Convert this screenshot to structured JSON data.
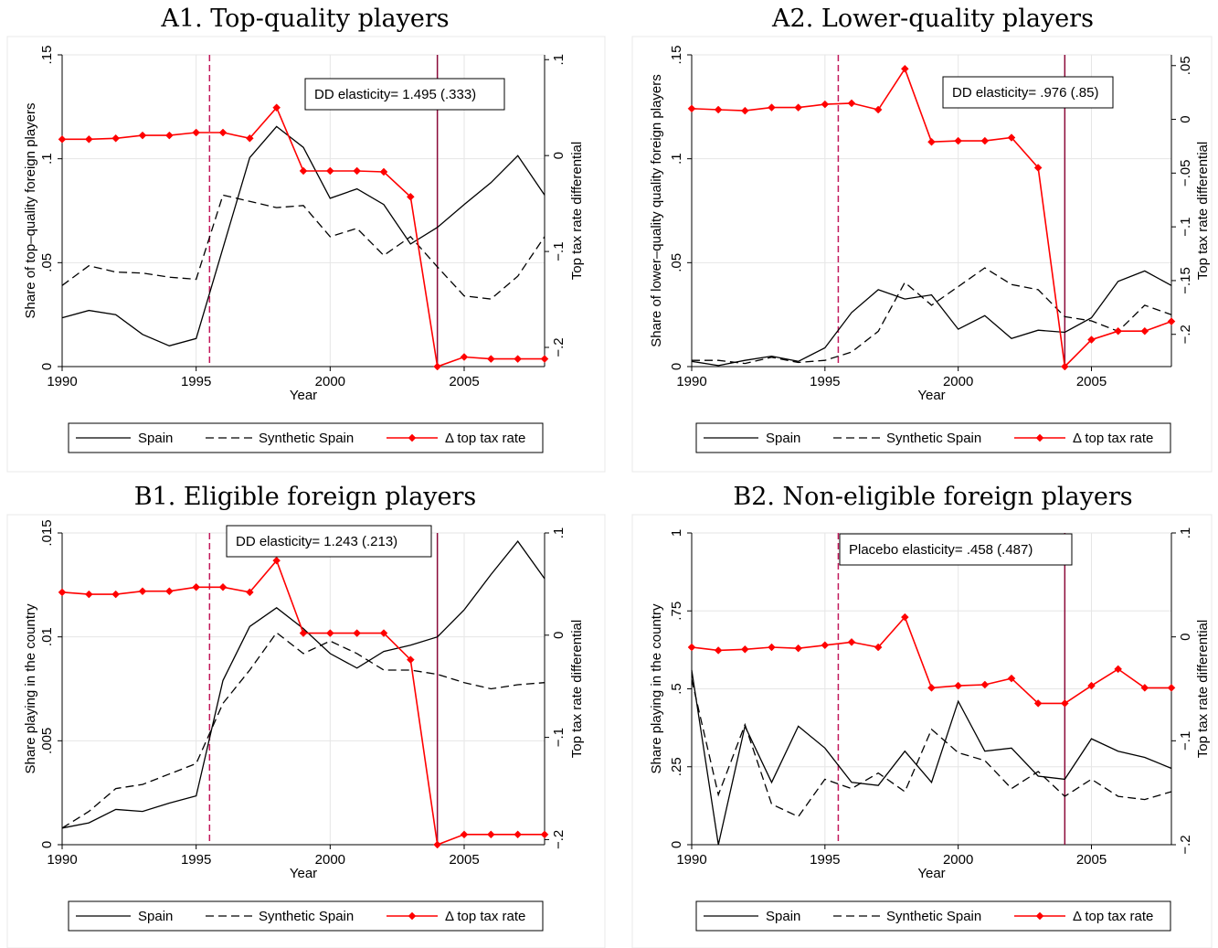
{
  "chart_data": [
    {
      "type": "line",
      "title": "A1. Top-quality players",
      "xlabel": "Year",
      "ylabel": "Share of top–quality foreign players",
      "y2label": "Top tax rate differential",
      "xlim": [
        1990,
        2008
      ],
      "ylim": [
        0,
        0.15
      ],
      "y2lim": [
        -0.22,
        0.105
      ],
      "x_ticks": [
        1990,
        1995,
        2000,
        2005
      ],
      "x_tick_labels": [
        "1990",
        "1995",
        "2000",
        "2005"
      ],
      "y_ticks": [
        0,
        0.05,
        0.1,
        0.15
      ],
      "y_tick_labels": [
        "0",
        ".05",
        ".1",
        ".15"
      ],
      "y2_ticks": [
        -0.2,
        -0.1,
        0,
        0.1
      ],
      "y2_tick_labels": [
        "−.2",
        "−.1",
        "0",
        ".1"
      ],
      "vlines": [
        1995.5,
        2004
      ],
      "annotation": "DD elasticity= 1.495 (.333)",
      "x": [
        1990,
        1991,
        1992,
        1993,
        1994,
        1995,
        1996,
        1997,
        1998,
        1999,
        2000,
        2001,
        2002,
        2003,
        2004,
        2005,
        2006,
        2007,
        2008
      ],
      "series": [
        {
          "name": "Spain",
          "axis": "left",
          "values": [
            0.0235,
            0.027,
            0.025,
            0.0155,
            0.01,
            0.0135,
            0.057,
            0.1005,
            0.1155,
            0.1055,
            0.081,
            0.0855,
            0.078,
            0.059,
            0.067,
            0.078,
            0.0885,
            0.1015,
            0.0825
          ]
        },
        {
          "name": "Synthetic Spain",
          "axis": "left",
          "values": [
            0.039,
            0.0485,
            0.0455,
            0.045,
            0.043,
            0.042,
            0.0825,
            0.0795,
            0.0765,
            0.0775,
            0.0625,
            0.0665,
            0.0535,
            0.0625,
            0.048,
            0.034,
            0.0325,
            0.0435,
            0.0625
          ]
        },
        {
          "name": "Δ top tax rate",
          "axis": "right",
          "values": [
            0.017,
            0.017,
            0.018,
            0.021,
            0.021,
            0.024,
            0.024,
            0.018,
            0.05,
            -0.016,
            -0.016,
            -0.016,
            -0.017,
            -0.043,
            -0.22,
            -0.21,
            -0.212,
            -0.212,
            -0.212
          ]
        }
      ],
      "legend": [
        "Spain",
        "Synthetic Spain",
        "Δ top tax rate"
      ],
      "legend_position": "bottom"
    },
    {
      "type": "line",
      "title": "A2. Lower-quality players",
      "xlabel": "Year",
      "ylabel": "Share of lower–quality quality foreign players",
      "y2label": "Top tax rate differential",
      "xlim": [
        1990,
        2008
      ],
      "ylim": [
        0,
        0.15
      ],
      "y2lim": [
        -0.23,
        0.06
      ],
      "x_ticks": [
        1990,
        1995,
        2000,
        2005
      ],
      "x_tick_labels": [
        "1990",
        "1995",
        "2000",
        "2005"
      ],
      "y_ticks": [
        0,
        0.05,
        0.1,
        0.15
      ],
      "y_tick_labels": [
        "0",
        ".05",
        ".1",
        ".15"
      ],
      "y2_ticks": [
        -0.2,
        -0.15,
        -0.1,
        -0.05,
        0,
        0.05
      ],
      "y2_tick_labels": [
        "−.2",
        "−.15",
        "−.1",
        "−.05",
        "0",
        ".05"
      ],
      "vlines": [
        1995.5,
        2004
      ],
      "annotation": "DD elasticity= .976 (.85)",
      "x": [
        1990,
        1991,
        1992,
        1993,
        1994,
        1995,
        1996,
        1997,
        1998,
        1999,
        2000,
        2001,
        2002,
        2003,
        2004,
        2005,
        2006,
        2007,
        2008
      ],
      "series": [
        {
          "name": "Spain",
          "axis": "left",
          "values": [
            0.0025,
            0.0005,
            0.003,
            0.005,
            0.0025,
            0.009,
            0.026,
            0.037,
            0.0325,
            0.0345,
            0.018,
            0.0245,
            0.0135,
            0.0175,
            0.0165,
            0.0235,
            0.041,
            0.046,
            0.039
          ]
        },
        {
          "name": "Synthetic Spain",
          "axis": "left",
          "values": [
            0.003,
            0.003,
            0.0015,
            0.0045,
            0.002,
            0.003,
            0.007,
            0.017,
            0.0405,
            0.0295,
            0.0385,
            0.0475,
            0.0395,
            0.037,
            0.024,
            0.022,
            0.017,
            0.0295,
            0.025
          ]
        },
        {
          "name": "Δ top tax rate",
          "axis": "right",
          "values": [
            0.01,
            0.009,
            0.008,
            0.011,
            0.011,
            0.014,
            0.015,
            0.009,
            0.047,
            -0.021,
            -0.02,
            -0.02,
            -0.017,
            -0.045,
            -0.23,
            -0.205,
            -0.197,
            -0.197,
            -0.188
          ]
        }
      ],
      "legend": [
        "Spain",
        "Synthetic Spain",
        "Δ top tax rate"
      ],
      "legend_position": "bottom"
    },
    {
      "type": "line",
      "title": "B1. Eligible foreign players",
      "xlabel": "Year",
      "ylabel": "Share playing in the country",
      "y2label": "Top tax rate differential",
      "xlim": [
        1990,
        2008
      ],
      "ylim": [
        0,
        0.015
      ],
      "y2lim": [
        -0.205,
        0.1
      ],
      "x_ticks": [
        1990,
        1995,
        2000,
        2005
      ],
      "x_tick_labels": [
        "1990",
        "1995",
        "2000",
        "2005"
      ],
      "y_ticks": [
        0,
        0.005,
        0.01,
        0.015
      ],
      "y_tick_labels": [
        "0",
        ".005",
        ".01",
        ".015"
      ],
      "y2_ticks": [
        -0.2,
        -0.1,
        0,
        0.1
      ],
      "y2_tick_labels": [
        "−.2",
        "−.1",
        "0",
        ".1"
      ],
      "vlines": [
        1995.5,
        2004
      ],
      "annotation": "DD elasticity= 1.243 (.213)",
      "x": [
        1990,
        1991,
        1992,
        1993,
        1994,
        1995,
        1996,
        1997,
        1998,
        1999,
        2000,
        2001,
        2002,
        2003,
        2004,
        2005,
        2006,
        2007,
        2008
      ],
      "series": [
        {
          "name": "Spain",
          "axis": "left",
          "values": [
            0.0008,
            0.00105,
            0.0017,
            0.0016,
            0.002,
            0.00235,
            0.0079,
            0.0105,
            0.0114,
            0.0104,
            0.0092,
            0.0085,
            0.0093,
            0.0096,
            0.01,
            0.0113,
            0.013,
            0.0146,
            0.0128
          ]
        },
        {
          "name": "Synthetic Spain",
          "axis": "left",
          "values": [
            0.0008,
            0.0016,
            0.0027,
            0.0029,
            0.0034,
            0.0039,
            0.0068,
            0.0084,
            0.0102,
            0.0092,
            0.0098,
            0.0092,
            0.0084,
            0.0084,
            0.0082,
            0.0078,
            0.0075,
            0.0077,
            0.0078
          ]
        },
        {
          "name": "Δ top tax rate",
          "axis": "right",
          "values": [
            0.042,
            0.04,
            0.04,
            0.043,
            0.043,
            0.047,
            0.047,
            0.042,
            0.073,
            0.002,
            0.002,
            0.002,
            0.002,
            -0.024,
            -0.205,
            -0.195,
            -0.195,
            -0.195,
            -0.195
          ]
        }
      ],
      "legend": [
        "Spain",
        "Synthetic Spain",
        "Δ top tax rate"
      ],
      "legend_position": "bottom"
    },
    {
      "type": "line",
      "title": "B2. Non-eligible foreign players",
      "xlabel": "Year",
      "ylabel": "Share playing in the country",
      "y2label": "Top tax rate differential",
      "xlim": [
        1990,
        2008
      ],
      "ylim": [
        0,
        1
      ],
      "y2lim": [
        -0.2,
        0.1
      ],
      "x_ticks": [
        1990,
        1995,
        2000,
        2005
      ],
      "x_tick_labels": [
        "1990",
        "1995",
        "2000",
        "2005"
      ],
      "y_ticks": [
        0,
        0.25,
        0.5,
        0.75,
        1
      ],
      "y_tick_labels": [
        "0",
        ".25",
        ".5",
        ".75",
        "1"
      ],
      "y2_ticks": [
        -0.2,
        -0.1,
        0,
        0.1
      ],
      "y2_tick_labels": [
        "−.2",
        "−.1",
        "0",
        ".1"
      ],
      "vlines": [
        1995.5,
        2004
      ],
      "annotation": "Placebo elasticity= .458 (.487)",
      "x": [
        1990,
        1991,
        1992,
        1993,
        1994,
        1995,
        1996,
        1997,
        1998,
        1999,
        2000,
        2001,
        2002,
        2003,
        2004,
        2005,
        2006,
        2007,
        2008
      ],
      "series": [
        {
          "name": "Spain",
          "axis": "left",
          "values": [
            0.56,
            0.0,
            0.38,
            0.2,
            0.38,
            0.31,
            0.2,
            0.19,
            0.3,
            0.2,
            0.46,
            0.3,
            0.31,
            0.22,
            0.21,
            0.34,
            0.3,
            0.28,
            0.245
          ]
        },
        {
          "name": "Synthetic Spain",
          "axis": "left",
          "values": [
            0.53,
            0.16,
            0.385,
            0.13,
            0.09,
            0.21,
            0.18,
            0.23,
            0.17,
            0.37,
            0.295,
            0.27,
            0.18,
            0.235,
            0.155,
            0.21,
            0.155,
            0.145,
            0.17
          ]
        },
        {
          "name": "Δ top tax rate",
          "axis": "right",
          "values": [
            -0.01,
            -0.013,
            -0.012,
            -0.01,
            -0.011,
            -0.008,
            -0.005,
            -0.01,
            0.019,
            -0.049,
            -0.047,
            -0.046,
            -0.04,
            -0.064,
            -0.064,
            -0.047,
            -0.031,
            -0.049,
            -0.049
          ]
        }
      ],
      "legend": [
        "Spain",
        "Synthetic Spain",
        "Δ top tax rate"
      ],
      "legend_position": "bottom"
    }
  ],
  "colors": {
    "spain": "#000000",
    "synthetic": "#000000",
    "tax": "#ff0000",
    "vline_dashed": "#c2185b",
    "vline_solid": "#8b0a3a",
    "grid": "#e6e6e6"
  }
}
